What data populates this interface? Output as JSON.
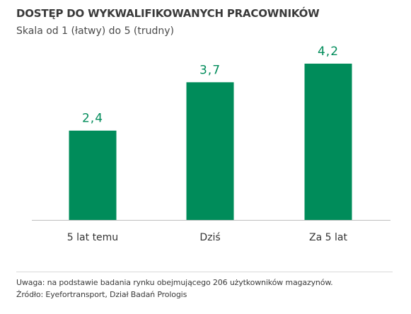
{
  "header": {
    "title": "DOSTĘP DO WYKWALIFIKOWANYCH PRACOWNIKÓW",
    "subtitle": "Skala od 1 (łatwy) do 5 (trudny)"
  },
  "footer": {
    "note": "Uwaga: na podstawie badania rynku obejmującego 206 użytkowników magazynów.",
    "source": "Źródło: Eyefortransport, Dział Badań Prologis"
  },
  "colors": {
    "bar": "#008c5a",
    "value_label": "#008c5a",
    "axis": "#bfbfbf"
  },
  "chart_data": {
    "type": "bar",
    "title": "DOSTĘP DO WYKWALIFIKOWANYCH PRACOWNIKÓW",
    "subtitle": "Skala od 1 (łatwy) do 5 (trudny)",
    "categories": [
      "5 lat temu",
      "Dziś",
      "Za 5 lat"
    ],
    "values": [
      2.4,
      3.7,
      4.2
    ],
    "value_labels": [
      "2,4",
      "3,7",
      "4,2"
    ],
    "xlabel": "",
    "ylabel": "",
    "ylim": [
      0,
      4.2
    ],
    "grid": false,
    "legend": "none"
  }
}
